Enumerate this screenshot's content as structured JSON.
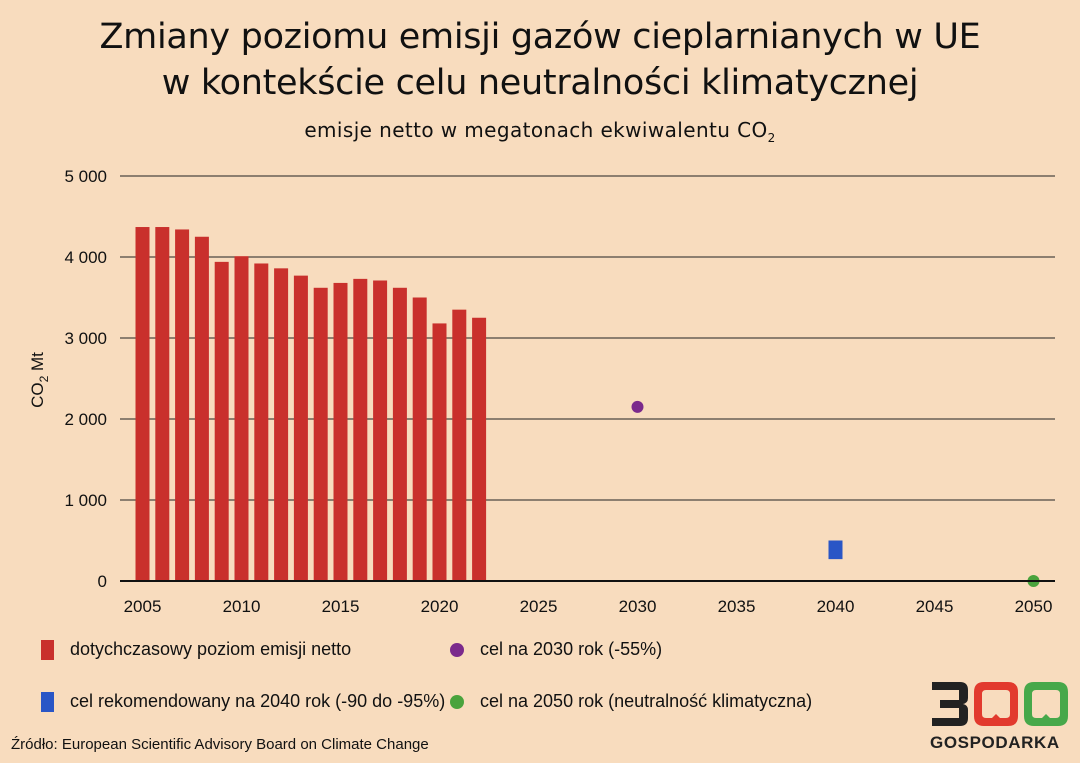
{
  "header": {
    "title_line1": "Zmiany poziomu emisji gazów cieplarnianych w UE",
    "title_line2": "w kontekście celu neutralności klimatycznej",
    "subtitle_main": "emisje netto w megatonach ekwiwalentu CO",
    "subtitle_sub": "2"
  },
  "chart_data": {
    "type": "bar",
    "ylabel": "CO2 Mt",
    "ylabel_main": "CO",
    "ylabel_sub": "2",
    "ylabel_tail": " Mt",
    "ylim": [
      0,
      5000
    ],
    "xlim": [
      2004,
      2051
    ],
    "yticks": [
      {
        "value": 0,
        "label": "0"
      },
      {
        "value": 1000,
        "label": "1 000"
      },
      {
        "value": 2000,
        "label": "2 000"
      },
      {
        "value": 3000,
        "label": "3 000"
      },
      {
        "value": 4000,
        "label": "4 000"
      },
      {
        "value": 5000,
        "label": "5 000"
      }
    ],
    "xticks": [
      "2005",
      "2010",
      "2015",
      "2020",
      "2025",
      "2030",
      "2035",
      "2040",
      "2045",
      "2050"
    ],
    "grid": true,
    "series": [
      {
        "name": "dotychczasowy poziom emisji netto",
        "kind": "bar",
        "color": "#c9302c",
        "x": [
          2005,
          2006,
          2007,
          2008,
          2009,
          2010,
          2011,
          2012,
          2013,
          2014,
          2015,
          2016,
          2017,
          2018,
          2019,
          2020,
          2021,
          2022
        ],
        "values": [
          4370,
          4370,
          4340,
          4250,
          3940,
          4010,
          3920,
          3860,
          3770,
          3620,
          3680,
          3730,
          3710,
          3620,
          3500,
          3180,
          3350,
          3250
        ]
      },
      {
        "name": "cel na 2030 rok (-55%)",
        "kind": "dot",
        "color": "#7b2a8c",
        "x": [
          2030
        ],
        "values": [
          2150
        ]
      },
      {
        "name": "cel rekomendowany na 2040 rok (-90 do -95%)",
        "kind": "range",
        "color": "#2a56c6",
        "x": [
          2040
        ],
        "low": [
          270
        ],
        "high": [
          500
        ]
      },
      {
        "name": "cel na 2050 rok (neutralność klimatyczna)",
        "kind": "dot",
        "color": "#4aa33d",
        "x": [
          2050
        ],
        "values": [
          0
        ]
      }
    ]
  },
  "legend": {
    "item1": "dotychczasowy poziom emisji netto",
    "item2": "cel na 2030 rok (-55%)",
    "item3": "cel rekomendowany na 2040 rok (-90 do -95%)",
    "item4": "cel na 2050 rok (neutralność klimatyczna)"
  },
  "source": "Źródło: European Scientific Advisory Board on Climate Change",
  "logo": {
    "digits": "300",
    "wordmark": "GOSPODARKA",
    "colors": {
      "three": "#222222",
      "zero1": "#e23a2e",
      "zero2": "#47a84a"
    }
  }
}
